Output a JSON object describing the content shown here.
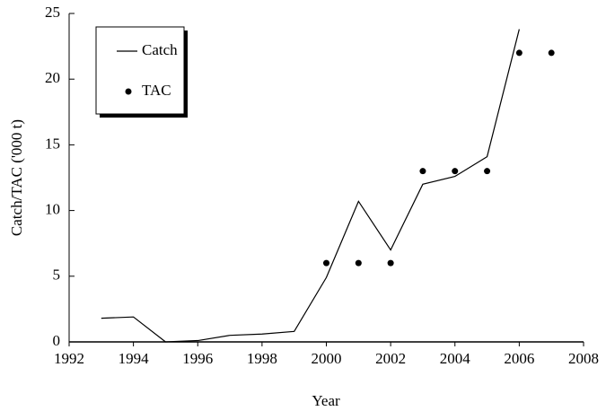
{
  "chart_data": {
    "type": "line",
    "x_label": "Year",
    "y_label": "Catch/TAC ('000 t)",
    "xlim": [
      1992,
      2008
    ],
    "xticks": [
      1992,
      1994,
      1996,
      1998,
      2000,
      2002,
      2004,
      2006,
      2008
    ],
    "ylim": [
      0,
      25
    ],
    "yticks": [
      0,
      5,
      10,
      15,
      20,
      25
    ],
    "legend": "upper left",
    "series": [
      {
        "name": "Catch",
        "mode": "line",
        "color": "#000000",
        "x": [
          1993,
          1994,
          1995,
          1996,
          1997,
          1998,
          1999,
          2000,
          2001,
          2002,
          2003,
          2004,
          2005,
          2006
        ],
        "values": [
          1.8,
          1.9,
          0,
          0.1,
          0.5,
          0.6,
          0.8,
          4.9,
          10.7,
          7.0,
          12.0,
          12.6,
          14.1,
          23.8
        ]
      },
      {
        "name": "TAC",
        "mode": "markers",
        "color": "#000000",
        "x": [
          2000,
          2001,
          2002,
          2003,
          2004,
          2005,
          2006,
          2007
        ],
        "values": [
          6,
          6,
          6,
          13,
          13,
          13,
          22,
          22
        ]
      }
    ]
  }
}
